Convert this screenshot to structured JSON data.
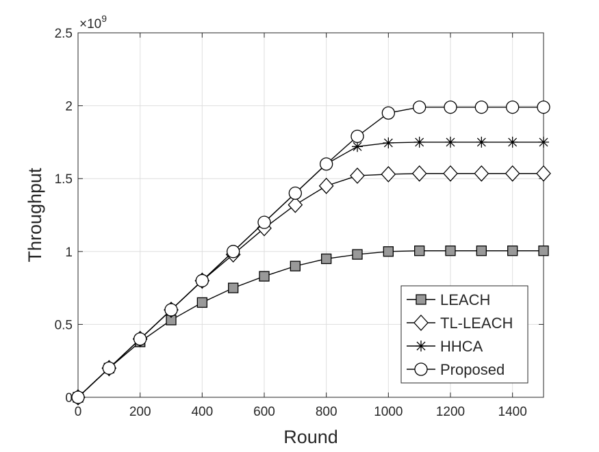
{
  "chart_data": {
    "type": "line",
    "title": "",
    "xlabel": "Round",
    "ylabel": "Throughput",
    "y_exponent_label": "×10",
    "y_exponent_power": "9",
    "xlim": [
      0,
      1500
    ],
    "ylim": [
      0,
      2.5
    ],
    "x_ticks": [
      0,
      200,
      400,
      600,
      800,
      1000,
      1200,
      1400
    ],
    "y_ticks": [
      0,
      0.5,
      1,
      1.5,
      2,
      2.5
    ],
    "x_tick_labels": [
      "0",
      "200",
      "400",
      "600",
      "800",
      "1000",
      "1200",
      "1400"
    ],
    "y_tick_labels": [
      "0",
      "0.5",
      "1",
      "1.5",
      "2",
      "2.5"
    ],
    "grid": true,
    "legend_position": "bottom-right",
    "x": [
      0,
      100,
      200,
      300,
      400,
      500,
      600,
      700,
      800,
      900,
      1000,
      1100,
      1200,
      1300,
      1400,
      1500
    ],
    "series": [
      {
        "name": "LEACH",
        "marker": "square",
        "color": "#000000",
        "marker_fill": "#999999",
        "values": [
          0,
          0.2,
          0.38,
          0.53,
          0.65,
          0.75,
          0.83,
          0.9,
          0.95,
          0.98,
          1.0,
          1.005,
          1.005,
          1.005,
          1.005,
          1.005
        ]
      },
      {
        "name": "TL-LEACH",
        "marker": "diamond",
        "color": "#000000",
        "marker_fill": "#ffffff",
        "values": [
          0,
          0.2,
          0.4,
          0.6,
          0.8,
          0.98,
          1.16,
          1.32,
          1.45,
          1.52,
          1.53,
          1.535,
          1.535,
          1.535,
          1.535,
          1.535
        ]
      },
      {
        "name": "HHCA",
        "marker": "asterisk",
        "color": "#000000",
        "marker_fill": "none",
        "values": [
          0,
          0.2,
          0.4,
          0.6,
          0.8,
          1.0,
          1.2,
          1.4,
          1.6,
          1.72,
          1.745,
          1.75,
          1.75,
          1.75,
          1.75,
          1.75
        ]
      },
      {
        "name": "Proposed",
        "marker": "circle",
        "color": "#000000",
        "marker_fill": "#ffffff",
        "values": [
          0,
          0.2,
          0.4,
          0.6,
          0.8,
          1.0,
          1.2,
          1.4,
          1.6,
          1.79,
          1.95,
          1.99,
          1.99,
          1.99,
          1.99,
          1.99
        ]
      }
    ]
  }
}
